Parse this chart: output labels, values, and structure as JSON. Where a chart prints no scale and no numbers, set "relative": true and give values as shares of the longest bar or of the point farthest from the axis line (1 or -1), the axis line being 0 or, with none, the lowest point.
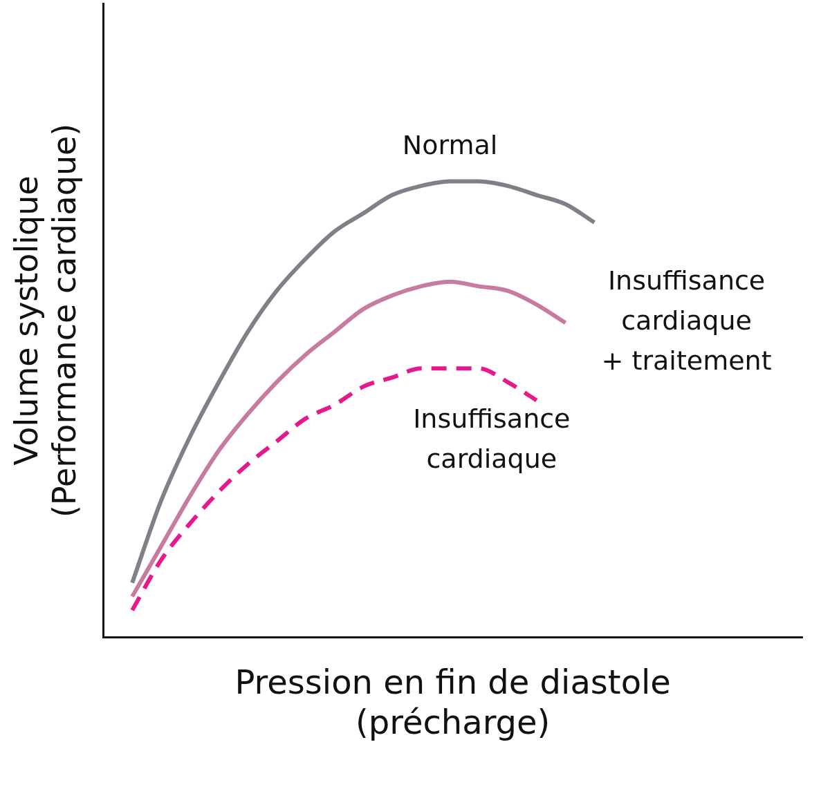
{
  "chart_data": {
    "type": "line",
    "relative": true,
    "xlabel": "Pression en fin de diastole\n(précharge)",
    "ylabel": "Volume systolique\n(Performance cardiaque)",
    "categories": [
      null,
      null,
      null,
      null,
      null,
      null,
      null,
      null,
      null,
      null,
      null,
      null,
      null,
      null,
      null,
      null,
      null
    ],
    "grid": false,
    "legend": false,
    "marker": "none",
    "series": [
      {
        "name": "Normal",
        "color": "#808088",
        "line_style": "solid",
        "values": [
          0.12,
          0.3,
          0.44,
          0.56,
          0.67,
          0.76,
          0.83,
          0.89,
          0.93,
          0.97,
          0.99,
          1.0,
          1.0,
          0.99,
          0.97,
          0.95,
          0.91
        ]
      },
      {
        "name": "Insuffisance\ncardiaque\n+ traitement",
        "color": "#c77ba0",
        "line_style": "solid",
        "values": [
          0.09,
          0.2,
          0.31,
          0.41,
          0.49,
          0.56,
          0.62,
          0.67,
          0.72,
          0.75,
          0.77,
          0.78,
          0.77,
          0.76,
          0.73,
          0.69,
          null
        ]
      },
      {
        "name": "Insuffisance\ncardiaque",
        "color": "#e6198c",
        "line_style": "dashed",
        "values": [
          0.06,
          0.17,
          0.25,
          0.32,
          0.38,
          0.43,
          0.48,
          0.51,
          0.55,
          0.57,
          0.59,
          0.59,
          0.59,
          0.56,
          0.52,
          null,
          null
        ]
      }
    ]
  }
}
